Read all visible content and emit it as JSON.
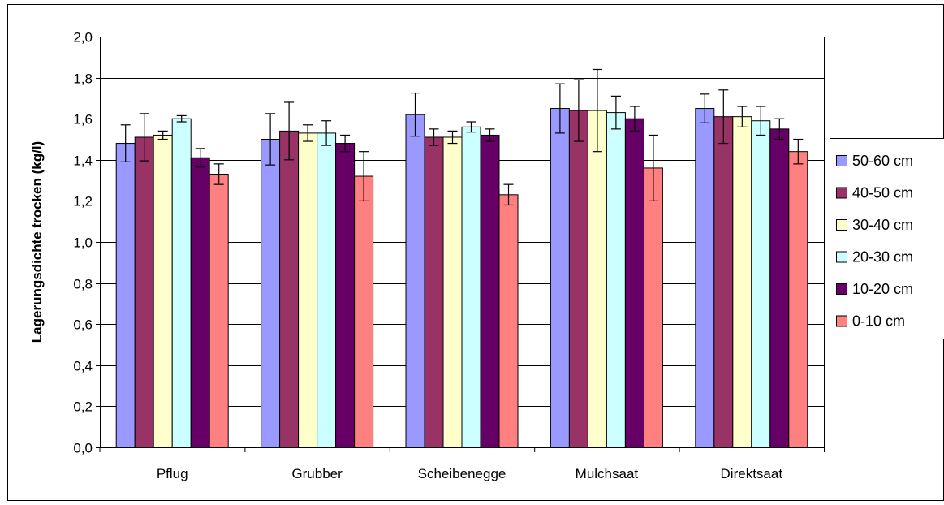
{
  "chart_data": {
    "type": "bar",
    "ylabel": "Lagerungsdichte trocken (kg/l)",
    "xlabel": "",
    "ylim": [
      0,
      2.0
    ],
    "ytick_step": 0.2,
    "ytick_labels": [
      "0,0",
      "0,2",
      "0,4",
      "0,6",
      "0,8",
      "1,0",
      "1,2",
      "1,4",
      "1,6",
      "1,8",
      "2,0"
    ],
    "grid": true,
    "legend_position": "right",
    "categories": [
      "Pflug",
      "Grubber",
      "Scheibenegge",
      "Mulchsaat",
      "Direktsaat"
    ],
    "series": [
      {
        "name": "50-60 cm",
        "color": "#9999ff",
        "values": [
          1.48,
          1.5,
          1.62,
          1.65,
          1.65
        ],
        "errors": [
          0.09,
          0.125,
          0.105,
          0.12,
          0.07
        ]
      },
      {
        "name": "40-50 cm",
        "color": "#993366",
        "values": [
          1.51,
          1.54,
          1.51,
          1.64,
          1.61
        ],
        "errors": [
          0.115,
          0.14,
          0.04,
          0.15,
          0.13
        ]
      },
      {
        "name": "30-40 cm",
        "color": "#ffffcc",
        "values": [
          1.52,
          1.53,
          1.51,
          1.64,
          1.61
        ],
        "errors": [
          0.02,
          0.04,
          0.03,
          0.2,
          0.05
        ]
      },
      {
        "name": "20-30 cm",
        "color": "#ccffff",
        "values": [
          1.6,
          1.53,
          1.56,
          1.63,
          1.59
        ],
        "errors": [
          0.015,
          0.06,
          0.025,
          0.08,
          0.07
        ]
      },
      {
        "name": "10-20 cm",
        "color": "#660066",
        "values": [
          1.41,
          1.48,
          1.52,
          1.6,
          1.55
        ],
        "errors": [
          0.045,
          0.04,
          0.03,
          0.06,
          0.05
        ]
      },
      {
        "name": "0-10 cm",
        "color": "#ff8080",
        "values": [
          1.33,
          1.32,
          1.23,
          1.36,
          1.44
        ],
        "errors": [
          0.05,
          0.12,
          0.05,
          0.16,
          0.06
        ]
      }
    ]
  }
}
